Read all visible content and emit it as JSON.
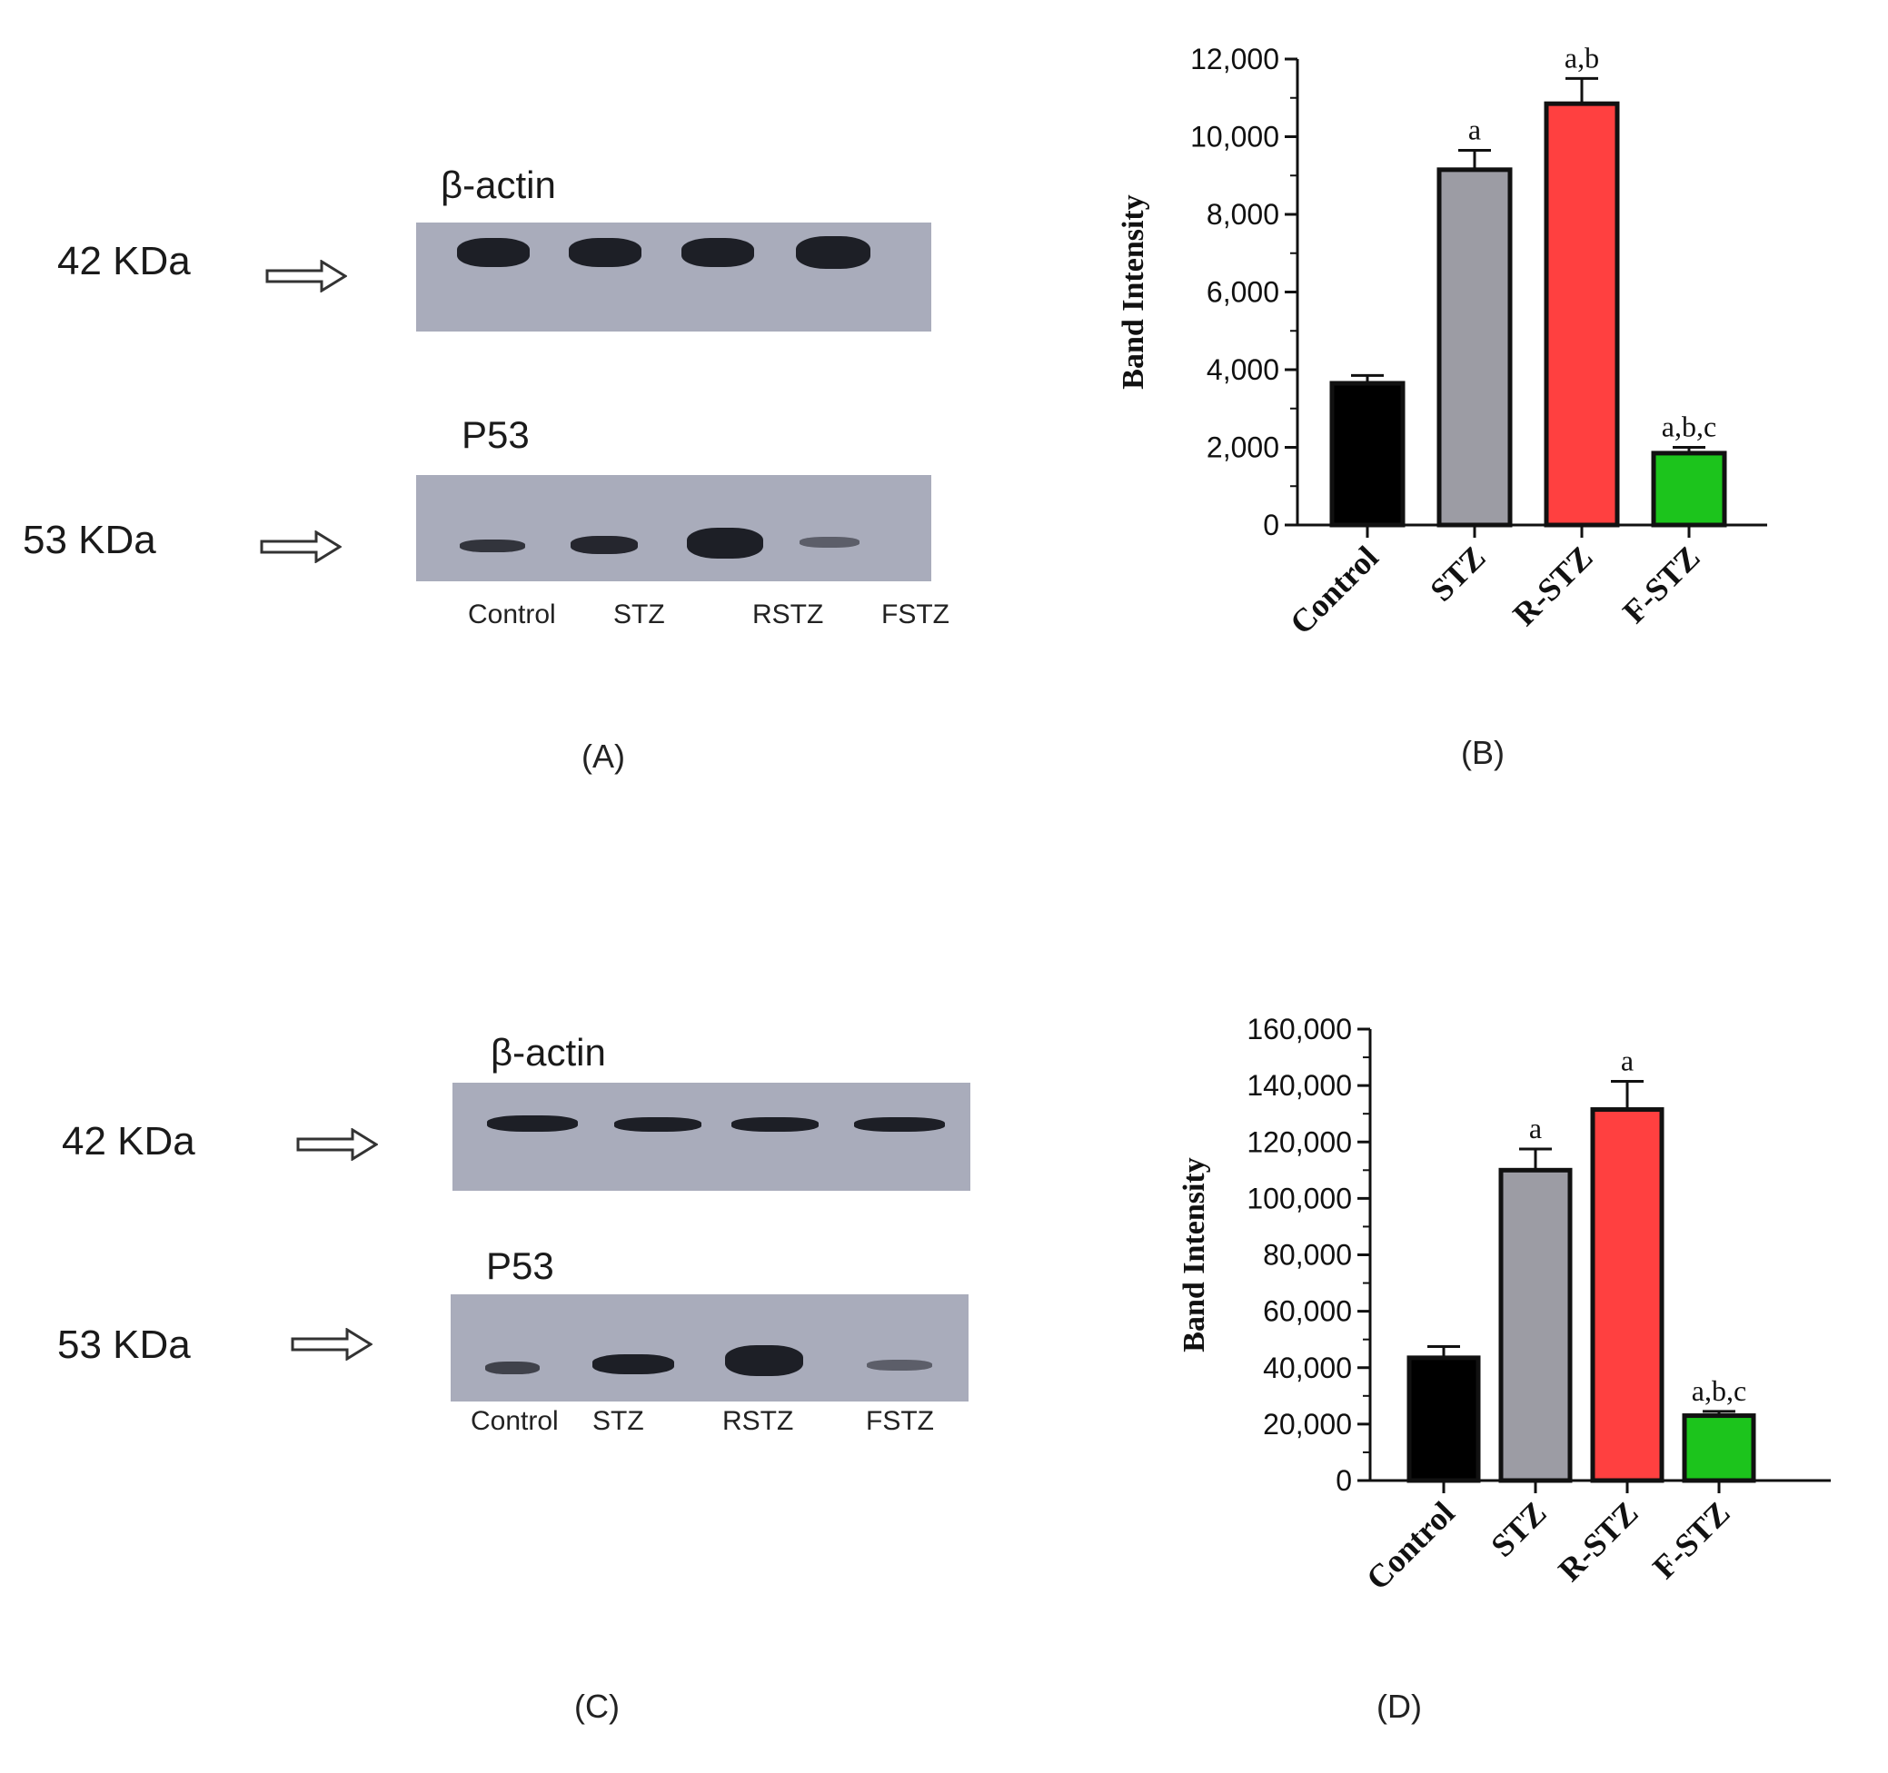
{
  "panel_a": {
    "label": "(A)",
    "actin": {
      "title": "β-actin",
      "kda": "42 KDa"
    },
    "p53": {
      "title": "P53",
      "kda": "53 KDa"
    },
    "lanes": [
      "Control",
      "STZ",
      "RSTZ",
      "FSTZ"
    ]
  },
  "panel_c": {
    "label": "(C)",
    "actin": {
      "title": "β-actin",
      "kda": "42 KDa"
    },
    "p53": {
      "title": "P53",
      "kda": "53 KDa"
    },
    "lanes": [
      "Control",
      "STZ",
      "RSTZ",
      "FSTZ"
    ]
  },
  "panel_b_label": "(B)",
  "panel_d_label": "(D)",
  "chart_data": [
    {
      "type": "bar",
      "categories": [
        "Control",
        "STZ",
        "R-STZ",
        "F-STZ"
      ],
      "values": [
        3650,
        9150,
        10850,
        1850
      ],
      "errors": [
        200,
        500,
        650,
        150
      ],
      "significance": [
        "",
        "a",
        "a,b",
        "a,b,c"
      ],
      "colors": [
        "#000000",
        "#9c9ca4",
        "#ff4040",
        "#1cc41c"
      ],
      "ylabel": "Band Intensity",
      "ylim": [
        0,
        12000
      ],
      "yticks": [
        0,
        2000,
        4000,
        6000,
        8000,
        10000,
        12000
      ],
      "ytick_labels": [
        "0",
        "2,000",
        "4,000",
        "6,000",
        "8,000",
        "10,000",
        "12,000"
      ]
    },
    {
      "type": "bar",
      "categories": [
        "Control",
        "STZ",
        "R-STZ",
        "F-STZ"
      ],
      "values": [
        43500,
        110000,
        131500,
        23000
      ],
      "errors": [
        4000,
        7500,
        10000,
        1500
      ],
      "significance": [
        "",
        "a",
        "a",
        "a,b,c"
      ],
      "colors": [
        "#000000",
        "#9c9ca4",
        "#ff4040",
        "#1cc41c"
      ],
      "ylabel": "Band Intensity",
      "ylim": [
        0,
        160000
      ],
      "yticks": [
        0,
        20000,
        40000,
        60000,
        80000,
        100000,
        120000,
        140000,
        160000
      ],
      "ytick_labels": [
        "0",
        "20,000",
        "40,000",
        "60,000",
        "80,000",
        "100,000",
        "120,000",
        "140,000",
        "160,000"
      ]
    }
  ]
}
